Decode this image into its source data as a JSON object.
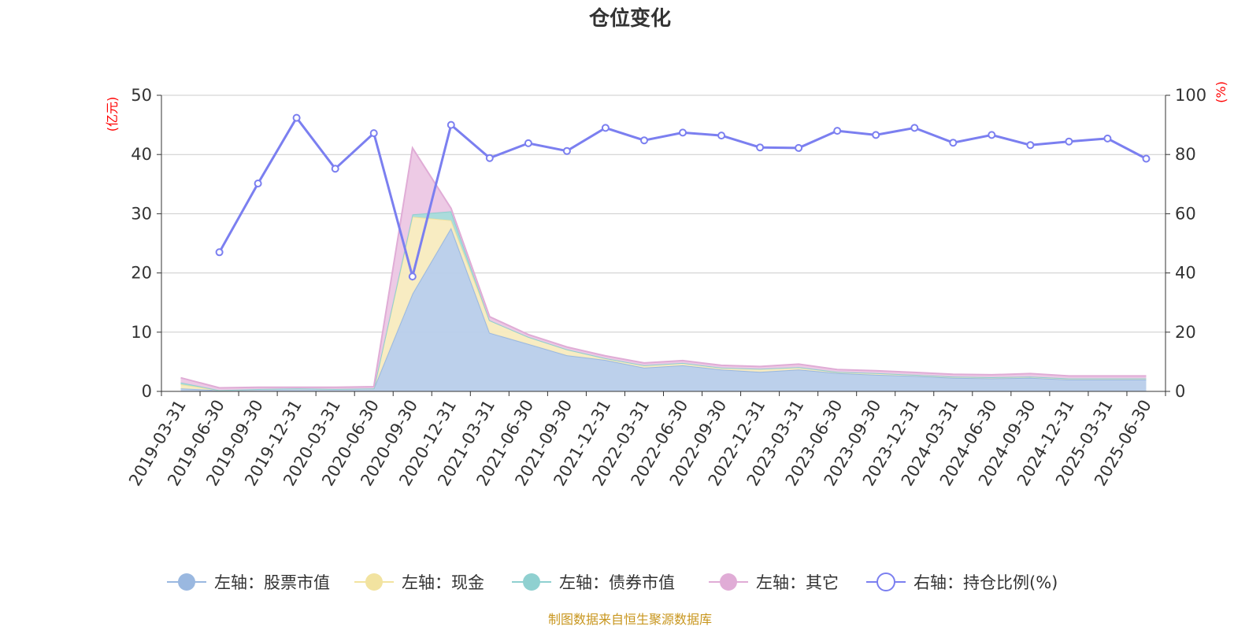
{
  "chart_data": {
    "type": "area",
    "title": "仓位变化",
    "left_axis_unit": "(亿元)",
    "right_axis_unit": "(%)",
    "ylim_left": [
      0,
      50
    ],
    "ylim_right": [
      0,
      100
    ],
    "left_ticks": [
      "0",
      "10",
      "20",
      "30",
      "40",
      "50"
    ],
    "right_ticks": [
      "0",
      "20",
      "40",
      "60",
      "80",
      "100"
    ],
    "grid": true,
    "legend_position": "bottom",
    "categories": [
      "2019-03-31",
      "2019-06-30",
      "2019-09-30",
      "2019-12-31",
      "2020-03-31",
      "2020-06-30",
      "2020-09-30",
      "2020-12-31",
      "2021-03-31",
      "2021-06-30",
      "2021-09-30",
      "2021-12-31",
      "2022-03-31",
      "2022-06-30",
      "2022-09-30",
      "2022-12-31",
      "2023-03-31",
      "2023-06-30",
      "2023-09-30",
      "2023-12-31",
      "2024-03-31",
      "2024-06-30",
      "2024-09-30",
      "2024-12-31",
      "2025-03-31",
      "2025-06-30"
    ],
    "series": [
      {
        "name": "左轴：股票市值",
        "axis": "left",
        "color": "#9ab8e0",
        "fill": "#b8cdea",
        "values": [
          0.5,
          0.2,
          0.4,
          0.5,
          0.4,
          0.5,
          16.5,
          27.6,
          9.9,
          8.0,
          6.1,
          5.3,
          4.0,
          4.4,
          3.7,
          3.3,
          3.7,
          3.1,
          2.8,
          2.6,
          2.3,
          2.2,
          2.3,
          2.0,
          2.0,
          2.0
        ]
      },
      {
        "name": "左轴：现金",
        "axis": "left",
        "color": "#f2e3a0",
        "fill": "#f8ebbf",
        "values": [
          0.7,
          0.0,
          0.0,
          0.0,
          0.0,
          0.0,
          13.0,
          1.3,
          2.1,
          1.2,
          1.0,
          0.3,
          0.4,
          0.4,
          0.3,
          0.5,
          0.4,
          0.2,
          0.3,
          0.2,
          0.2,
          0.2,
          0.2,
          0.2,
          0.2,
          0.2
        ]
      },
      {
        "name": "左轴：债券市值",
        "axis": "left",
        "color": "#8fd0d0",
        "fill": "#a6dada",
        "values": [
          0.3,
          0.0,
          0.0,
          0.0,
          0.0,
          0.0,
          0.4,
          1.5,
          0.0,
          0.0,
          0.0,
          0.0,
          0.0,
          0.0,
          0.0,
          0.0,
          0.0,
          0.0,
          0.0,
          0.0,
          0.0,
          0.0,
          0.0,
          0.0,
          0.0,
          0.0
        ]
      },
      {
        "name": "左轴：其它",
        "axis": "left",
        "color": "#e0acd6",
        "fill": "#ecc7e4",
        "values": [
          0.8,
          0.4,
          0.3,
          0.2,
          0.3,
          0.3,
          11.2,
          0.5,
          0.6,
          0.4,
          0.4,
          0.4,
          0.4,
          0.4,
          0.4,
          0.4,
          0.5,
          0.4,
          0.4,
          0.4,
          0.4,
          0.4,
          0.5,
          0.4,
          0.4,
          0.4
        ]
      },
      {
        "name": "右轴：持仓比例(%)",
        "axis": "right",
        "color": "#7b7ff0",
        "values": [
          null,
          47.0,
          70.2,
          92.4,
          75.2,
          87.2,
          38.8,
          90.0,
          78.8,
          83.8,
          81.2,
          89.0,
          84.8,
          87.4,
          86.4,
          82.4,
          82.2,
          88.0,
          86.6,
          89.0,
          84.0,
          86.6,
          83.2,
          84.4,
          85.4,
          78.6
        ]
      }
    ],
    "source_note": "制图数据来自恒生聚源数据库"
  }
}
